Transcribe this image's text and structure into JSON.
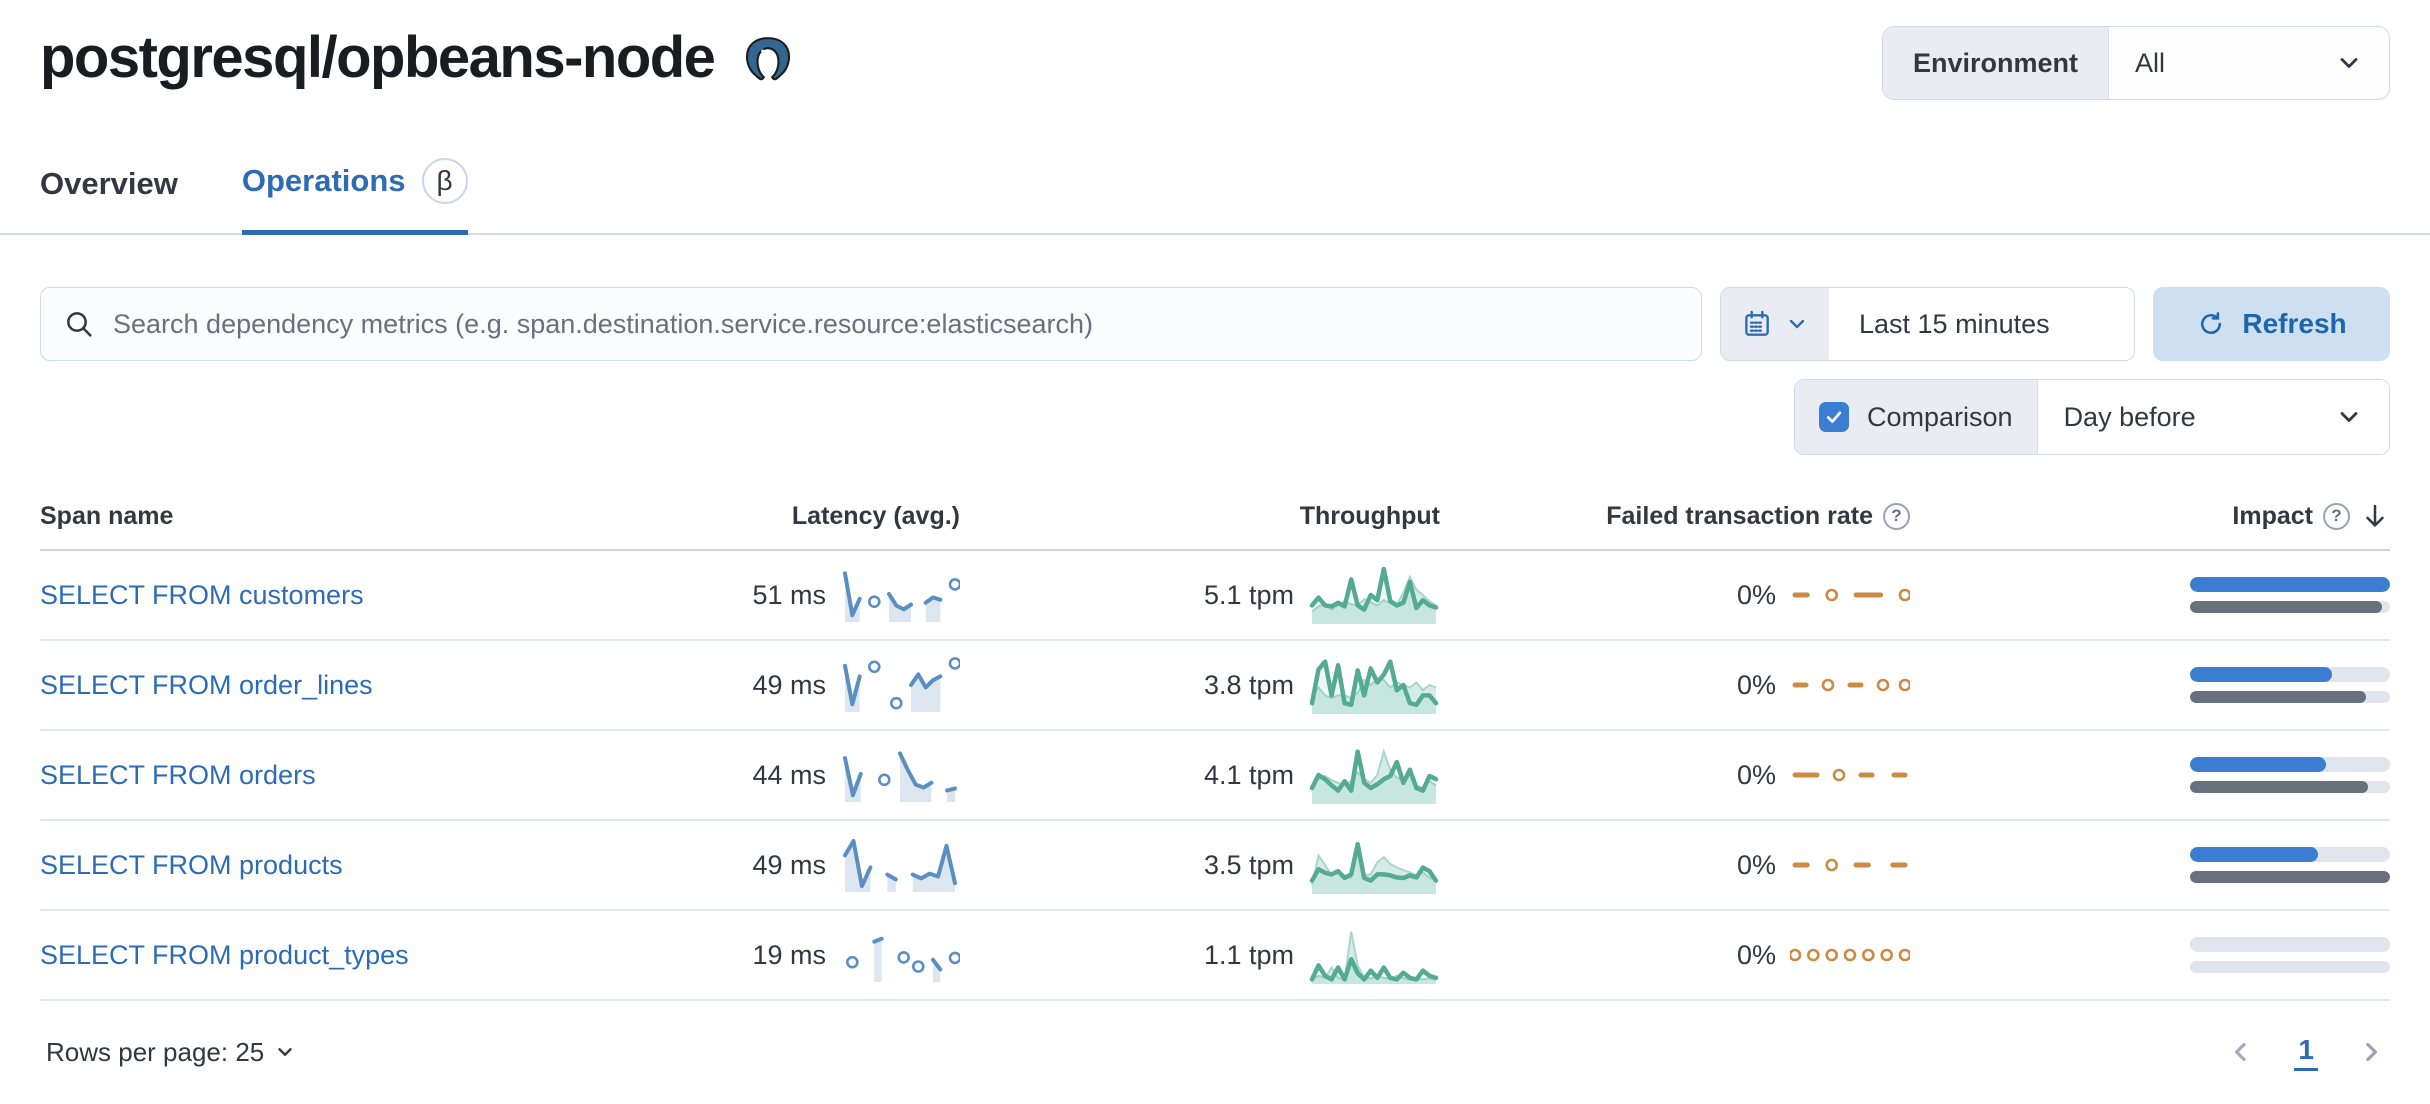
{
  "page": {
    "title": "postgresql/opbeans-node"
  },
  "environment": {
    "label": "Environment",
    "value": "All"
  },
  "tabs": [
    {
      "label": "Overview"
    },
    {
      "label": "Operations",
      "badge": "β"
    }
  ],
  "search": {
    "placeholder": "Search dependency metrics (e.g. span.destination.service.resource:elasticsearch)"
  },
  "time_picker": {
    "value": "Last 15 minutes"
  },
  "refresh": {
    "label": "Refresh"
  },
  "comparison": {
    "label": "Comparison",
    "checked": true,
    "value": "Day before"
  },
  "colors": {
    "accent_blue": "#2d6cb5",
    "title_text": "#1a1c21",
    "text": "#343741",
    "muted_text": "#69707d",
    "border": "#d3dae6",
    "panel_gray": "#e9edf3",
    "refresh_bg": "#cce0f2",
    "checkbox_blue": "#3b7dd1",
    "latency_spark": "#5b8fc1",
    "latency_fill": "rgba(91,143,193,0.22)",
    "throughput_spark": "#54ab92",
    "throughput_prev_line": "#a9d6c8",
    "throughput_prev_fill": "rgba(84,179,153,0.25)",
    "throughput_cur_fill": "rgba(84,179,153,0.10)",
    "failed_spark": "#cc8a44",
    "impact_current": "#3b7dd1",
    "impact_previous": "#69707d",
    "impact_track": "#dfe4ee"
  },
  "table": {
    "headers": {
      "span": "Span name",
      "latency": "Latency (avg.)",
      "throughput": "Throughput",
      "failed": "Failed transaction rate",
      "impact": "Impact"
    },
    "rows": [
      {
        "span_name": "SELECT FROM customers",
        "latency": "51 ms",
        "throughput": "5.1 tpm",
        "failed_rate": "0%",
        "latency_spark": [
          0.95,
          0.08,
          0.42,
          null,
          0.36,
          null,
          0.52,
          0.28,
          0.2,
          0.3,
          null,
          0.34,
          0.45,
          0.4,
          null,
          0.72
        ],
        "throughput_spark": {
          "current": [
            0.3,
            0.45,
            0.3,
            0.28,
            0.35,
            0.28,
            0.8,
            0.3,
            0.22,
            0.5,
            0.4,
            1.0,
            0.38,
            0.3,
            0.35,
            0.75,
            0.25,
            0.4,
            0.3,
            0.26
          ],
          "previous": [
            0.18,
            0.28,
            0.32,
            0.22,
            0.3,
            0.38,
            0.32,
            0.3,
            0.42,
            0.36,
            0.3,
            0.4,
            0.34,
            0.3,
            0.55,
            0.85,
            0.6,
            0.5,
            0.38,
            0.3
          ]
        },
        "failed_spark": [
          1,
          1,
          null,
          1,
          null,
          1,
          1,
          1,
          null,
          1
        ],
        "impact": {
          "current": 1.0,
          "previous": 0.96
        }
      },
      {
        "span_name": "SELECT FROM order_lines",
        "latency": "49 ms",
        "throughput": "3.8 tpm",
        "failed_rate": "0%",
        "latency_spark": [
          0.9,
          0.1,
          0.68,
          null,
          0.88,
          null,
          null,
          0.12,
          null,
          0.5,
          0.72,
          0.45,
          0.6,
          0.68,
          null,
          0.95
        ],
        "throughput_spark": {
          "current": [
            0.15,
            0.8,
            0.95,
            0.3,
            0.88,
            0.15,
            0.12,
            0.78,
            0.3,
            0.82,
            0.55,
            0.7,
            0.95,
            0.4,
            0.5,
            0.15,
            0.12,
            0.3,
            0.3,
            0.15
          ],
          "previous": [
            0.3,
            0.45,
            0.3,
            0.25,
            0.3,
            0.3,
            0.25,
            0.35,
            0.6,
            0.5,
            0.62,
            0.6,
            0.45,
            0.55,
            0.5,
            0.45,
            0.55,
            0.4,
            0.5,
            0.45
          ]
        },
        "failed_spark": [
          1,
          1,
          null,
          1,
          null,
          1,
          1,
          null,
          1,
          null,
          1
        ],
        "impact": {
          "current": 0.71,
          "previous": 0.88
        }
      },
      {
        "span_name": "SELECT FROM orders",
        "latency": "44 ms",
        "throughput": "4.1 tpm",
        "failed_rate": "0%",
        "latency_spark": [
          0.85,
          0.08,
          0.52,
          null,
          null,
          0.4,
          null,
          0.95,
          0.6,
          0.3,
          0.24,
          0.34,
          null,
          0.18,
          0.22
        ],
        "throughput_spark": {
          "current": [
            0.25,
            0.5,
            0.42,
            0.3,
            0.2,
            0.38,
            0.2,
            0.95,
            0.35,
            0.25,
            0.32,
            0.42,
            0.48,
            0.75,
            0.35,
            0.6,
            0.25,
            0.2,
            0.48,
            0.42
          ],
          "previous": [
            0.3,
            0.42,
            0.48,
            0.4,
            0.35,
            0.3,
            0.38,
            0.55,
            0.42,
            0.35,
            0.5,
            0.95,
            0.6,
            0.45,
            0.4,
            0.52,
            0.3,
            0.25,
            0.38,
            0.3
          ]
        },
        "failed_spark": [
          1,
          1,
          1,
          null,
          1,
          null,
          1,
          1,
          null,
          1,
          1
        ],
        "impact": {
          "current": 0.68,
          "previous": 0.89
        }
      },
      {
        "span_name": "SELECT FROM products",
        "latency": "49 ms",
        "throughput": "3.5 tpm",
        "failed_rate": "0%",
        "latency_spark": [
          0.7,
          1.0,
          0.06,
          0.45,
          null,
          0.3,
          0.2,
          null,
          0.3,
          0.22,
          0.32,
          0.26,
          0.9,
          0.12
        ],
        "throughput_spark": {
          "current": [
            0.2,
            0.42,
            0.35,
            0.32,
            0.38,
            0.25,
            0.32,
            0.9,
            0.25,
            0.2,
            0.32,
            0.32,
            0.3,
            0.26,
            0.25,
            0.3,
            0.26,
            0.45,
            0.38,
            0.2
          ],
          "previous": [
            0.12,
            0.68,
            0.5,
            0.3,
            0.36,
            0.3,
            0.25,
            0.88,
            0.3,
            0.32,
            0.55,
            0.65,
            0.52,
            0.45,
            0.4,
            0.36,
            0.3,
            0.36,
            0.26,
            0.2
          ]
        },
        "failed_spark": [
          1,
          1,
          null,
          1,
          null,
          1,
          1,
          null,
          1,
          1
        ],
        "impact": {
          "current": 0.64,
          "previous": 1.0
        }
      },
      {
        "span_name": "SELECT FROM product_types",
        "latency": "19 ms",
        "throughput": "1.1 tpm",
        "failed_rate": "0%",
        "latency_spark": [
          null,
          0.35,
          null,
          null,
          0.78,
          0.84,
          null,
          null,
          0.45,
          null,
          0.26,
          null,
          0.4,
          0.2,
          null,
          0.44
        ],
        "throughput_spark": {
          "current": [
            0.03,
            0.3,
            0.1,
            0.03,
            0.26,
            0.03,
            0.42,
            0.15,
            0.03,
            0.2,
            0.06,
            0.26,
            0.06,
            0.03,
            0.16,
            0.06,
            0.03,
            0.2,
            0.1,
            0.06
          ],
          "previous": [
            0.03,
            0.1,
            0.06,
            0.26,
            0.06,
            0.03,
            0.95,
            0.3,
            0.06,
            0.05,
            0.1,
            0.06,
            0.05,
            0.1,
            0.05,
            0.03,
            0.05,
            0.03,
            0.05,
            0.03
          ]
        },
        "failed_spark": [
          1,
          null,
          1,
          null,
          1,
          null,
          1,
          null,
          1,
          null,
          1,
          null,
          1
        ],
        "impact": {
          "current": 0.0,
          "previous": 0.0
        }
      }
    ]
  },
  "footer": {
    "rows_per_page": "Rows per page: 25",
    "page": "1"
  }
}
